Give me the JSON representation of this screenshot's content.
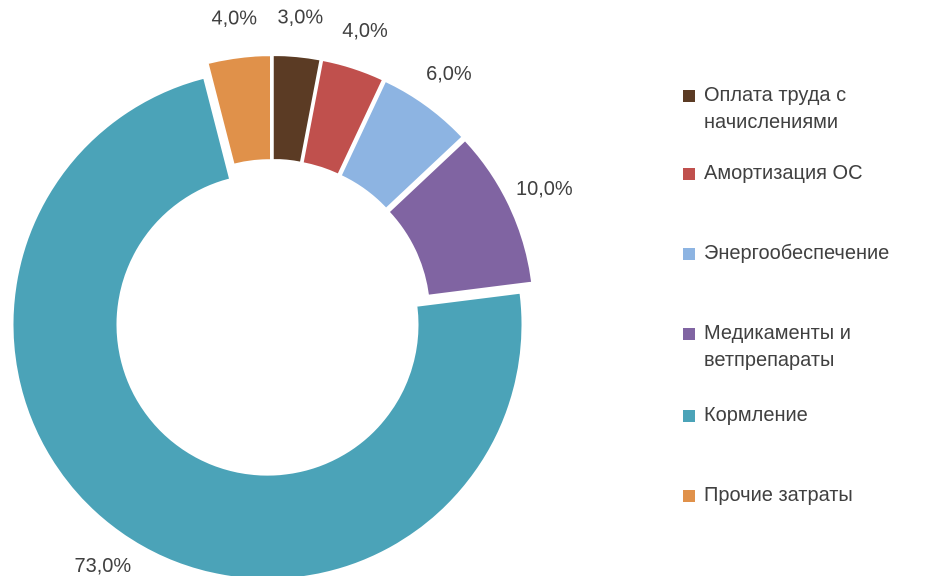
{
  "chart_data": {
    "type": "donut",
    "categories": [
      "Оплата труда с начислениями",
      "Амортизация ОС",
      "Энергообеспечение",
      "Медикаменты и ветпрепараты",
      "Кормление",
      "Прочие затраты"
    ],
    "values": [
      3,
      4,
      6,
      10,
      73,
      4
    ],
    "value_labels": [
      "3,0%",
      "4,0%",
      "6,0%",
      "10,0%",
      "73,0%",
      "4,0%"
    ],
    "colors": [
      "#5b3b24",
      "#c0504d",
      "#8db4e2",
      "#8064a2",
      "#4ba3b8",
      "#e0914a"
    ],
    "legend": "right"
  }
}
